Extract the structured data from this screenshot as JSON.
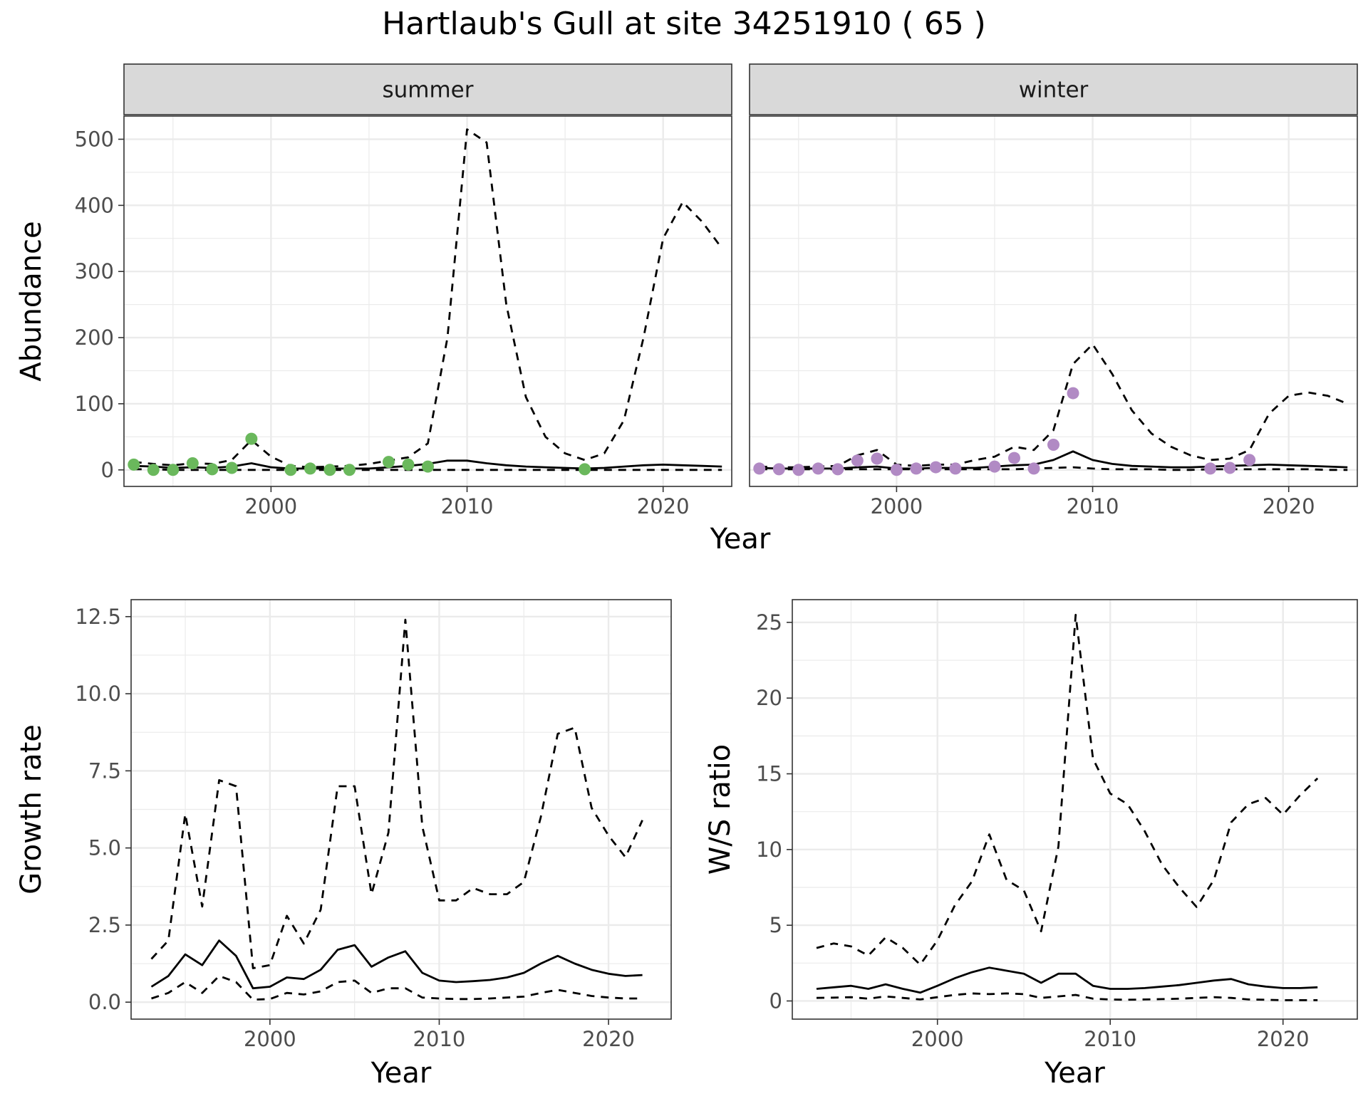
{
  "title": "Hartlaub's Gull at site 34251910 ( 65 )",
  "colors": {
    "summer_points": "#6AB85C",
    "winter_points": "#B18AC4",
    "strip": "#D9D9D9",
    "grid": "#EBEBEB",
    "line": "#000000"
  },
  "chart_data": [
    {
      "type": "line",
      "panel": "abundance-summer",
      "facet_label": "summer",
      "xlabel": "Year",
      "ylabel": "Abundance",
      "xlim": [
        1992.5,
        2023.5
      ],
      "ylim": [
        -25,
        535
      ],
      "xticks": [
        2000,
        2010,
        2020
      ],
      "yticks": [
        0,
        100,
        200,
        300,
        400,
        500
      ],
      "grid": true,
      "series": [
        {
          "role": "median",
          "style": "solid",
          "x": [
            1993,
            1994,
            1995,
            1996,
            1997,
            1998,
            1999,
            2000,
            2001,
            2002,
            2003,
            2004,
            2005,
            2006,
            2007,
            2008,
            2009,
            2010,
            2011,
            2012,
            2013,
            2014,
            2015,
            2016,
            2017,
            2018,
            2019,
            2020,
            2021,
            2022,
            2023
          ],
          "y": [
            6,
            5,
            3,
            4,
            3,
            5,
            10,
            4,
            2,
            2,
            2,
            2,
            2,
            4,
            6,
            9,
            14,
            14,
            10,
            7,
            5,
            4,
            3,
            2,
            3,
            5,
            7,
            8,
            7,
            6,
            5
          ]
        },
        {
          "role": "upper",
          "style": "dashed",
          "x": [
            1993,
            1994,
            1995,
            1996,
            1997,
            1998,
            1999,
            2000,
            2001,
            2002,
            2003,
            2004,
            2005,
            2006,
            2007,
            2008,
            2009,
            2010,
            2011,
            2012,
            2013,
            2014,
            2015,
            2016,
            2017,
            2018,
            2019,
            2020,
            2021,
            2022,
            2023
          ],
          "y": [
            12,
            9,
            7,
            10,
            9,
            15,
            45,
            20,
            6,
            4,
            5,
            6,
            9,
            14,
            19,
            40,
            200,
            515,
            495,
            250,
            110,
            50,
            25,
            15,
            25,
            75,
            200,
            350,
            405,
            375,
            335
          ]
        },
        {
          "role": "lower",
          "style": "dashed",
          "x": [
            1993,
            1994,
            1995,
            1996,
            1997,
            1998,
            1999,
            2000,
            2001,
            2002,
            2003,
            2004,
            2005,
            2006,
            2007,
            2008,
            2009,
            2010,
            2011,
            2012,
            2013,
            2014,
            2015,
            2016,
            2017,
            2018,
            2019,
            2020,
            2021,
            2022,
            2023
          ],
          "y": [
            1,
            1,
            0,
            0,
            0,
            0,
            0,
            0,
            0,
            0,
            0,
            0,
            0,
            0,
            0,
            0,
            0,
            0,
            0,
            0,
            0,
            0,
            0,
            0,
            0,
            0,
            0,
            0,
            0,
            0,
            0
          ]
        },
        {
          "role": "observed",
          "style": "points",
          "color": "#6AB85C",
          "x": [
            1993,
            1994,
            1995,
            1996,
            1997,
            1998,
            1999,
            2001,
            2002,
            2003,
            2004,
            2006,
            2007,
            2008,
            2016
          ],
          "y": [
            8,
            0,
            0,
            10,
            1,
            3,
            47,
            0,
            2,
            0,
            0,
            12,
            8,
            5,
            1
          ]
        }
      ]
    },
    {
      "type": "line",
      "panel": "abundance-winter",
      "facet_label": "winter",
      "xlabel": "Year",
      "ylabel": "",
      "xlim": [
        1992.5,
        2023.5
      ],
      "ylim": [
        -25,
        535
      ],
      "xticks": [
        2000,
        2010,
        2020
      ],
      "yticks": [
        0,
        100,
        200,
        300,
        400,
        500
      ],
      "grid": true,
      "series": [
        {
          "role": "median",
          "style": "solid",
          "x": [
            1993,
            1994,
            1995,
            1996,
            1997,
            1998,
            1999,
            2000,
            2001,
            2002,
            2003,
            2004,
            2005,
            2006,
            2007,
            2008,
            2009,
            2010,
            2011,
            2012,
            2013,
            2014,
            2015,
            2016,
            2017,
            2018,
            2019,
            2020,
            2021,
            2022,
            2023
          ],
          "y": [
            3,
            2,
            2,
            2,
            2,
            4,
            5,
            2,
            2,
            3,
            3,
            3,
            5,
            7,
            8,
            15,
            28,
            15,
            9,
            6,
            5,
            4,
            4,
            5,
            6,
            7,
            8,
            7,
            6,
            5,
            4
          ]
        },
        {
          "role": "upper",
          "style": "dashed",
          "x": [
            1993,
            1994,
            1995,
            1996,
            1997,
            1998,
            1999,
            2000,
            2001,
            2002,
            2003,
            2004,
            2005,
            2006,
            2007,
            2008,
            2009,
            2010,
            2011,
            2012,
            2013,
            2014,
            2015,
            2016,
            2017,
            2018,
            2019,
            2020,
            2021,
            2022,
            2023
          ],
          "y": [
            5,
            4,
            4,
            5,
            6,
            22,
            30,
            8,
            6,
            8,
            8,
            15,
            20,
            35,
            30,
            60,
            160,
            190,
            145,
            90,
            55,
            35,
            22,
            15,
            17,
            30,
            85,
            112,
            117,
            112,
            100
          ]
        },
        {
          "role": "lower",
          "style": "dashed",
          "x": [
            1993,
            1994,
            1995,
            1996,
            1997,
            1998,
            1999,
            2000,
            2001,
            2002,
            2003,
            2004,
            2005,
            2006,
            2007,
            2008,
            2009,
            2010,
            2011,
            2012,
            2013,
            2014,
            2015,
            2016,
            2017,
            2018,
            2019,
            2020,
            2021,
            2022,
            2023
          ],
          "y": [
            1,
            1,
            1,
            1,
            1,
            1,
            1,
            1,
            1,
            1,
            1,
            1,
            1,
            1,
            2,
            3,
            4,
            2,
            1,
            1,
            1,
            0,
            0,
            1,
            1,
            1,
            1,
            1,
            1,
            0,
            0
          ]
        },
        {
          "role": "observed",
          "style": "points",
          "color": "#B18AC4",
          "x": [
            1993,
            1994,
            1995,
            1996,
            1997,
            1998,
            1999,
            2000,
            2001,
            2002,
            2003,
            2005,
            2006,
            2007,
            2008,
            2009,
            2016,
            2017,
            2018
          ],
          "y": [
            2,
            1,
            0,
            2,
            1,
            14,
            17,
            0,
            2,
            4,
            2,
            5,
            18,
            2,
            38,
            116,
            2,
            3,
            15
          ]
        }
      ]
    },
    {
      "type": "line",
      "panel": "growth-rate",
      "xlabel": "Year",
      "ylabel": "Growth rate",
      "xlim": [
        1991.8,
        2023.7
      ],
      "ylim": [
        -0.55,
        13.05
      ],
      "xticks": [
        2000,
        2010,
        2020
      ],
      "yticks": [
        0.0,
        2.5,
        5.0,
        7.5,
        10.0,
        12.5
      ],
      "ytick_labels": [
        "0.0",
        "2.5",
        "5.0",
        "7.5",
        "10.0",
        "12.5"
      ],
      "grid": true,
      "series": [
        {
          "role": "median",
          "style": "solid",
          "x": [
            1993,
            1994,
            1995,
            1996,
            1997,
            1998,
            1999,
            2000,
            2001,
            2002,
            2003,
            2004,
            2005,
            2006,
            2007,
            2008,
            2009,
            2010,
            2011,
            2012,
            2013,
            2014,
            2015,
            2016,
            2017,
            2018,
            2019,
            2020,
            2021,
            2022
          ],
          "y": [
            0.5,
            0.85,
            1.55,
            1.2,
            2.0,
            1.5,
            0.45,
            0.5,
            0.8,
            0.75,
            1.05,
            1.7,
            1.85,
            1.15,
            1.45,
            1.65,
            0.95,
            0.7,
            0.65,
            0.68,
            0.72,
            0.8,
            0.95,
            1.25,
            1.5,
            1.25,
            1.05,
            0.92,
            0.85,
            0.88
          ]
        },
        {
          "role": "upper",
          "style": "dashed",
          "x": [
            1993,
            1994,
            1995,
            1996,
            1997,
            1998,
            1999,
            2000,
            2001,
            2002,
            2003,
            2004,
            2005,
            2006,
            2007,
            2008,
            2009,
            2010,
            2011,
            2012,
            2013,
            2014,
            2015,
            2016,
            2017,
            2018,
            2019,
            2020,
            2021,
            2022
          ],
          "y": [
            1.4,
            2.0,
            6.1,
            3.1,
            7.2,
            7.0,
            1.1,
            1.2,
            2.8,
            1.9,
            3.0,
            7.0,
            7.0,
            3.5,
            5.5,
            12.4,
            5.7,
            3.3,
            3.3,
            3.7,
            3.5,
            3.5,
            3.9,
            6.0,
            8.7,
            8.9,
            6.3,
            5.4,
            4.7,
            5.9
          ]
        },
        {
          "role": "lower",
          "style": "dashed",
          "x": [
            1993,
            1994,
            1995,
            1996,
            1997,
            1998,
            1999,
            2000,
            2001,
            2002,
            2003,
            2004,
            2005,
            2006,
            2007,
            2008,
            2009,
            2010,
            2011,
            2012,
            2013,
            2014,
            2015,
            2016,
            2017,
            2018,
            2019,
            2020,
            2021,
            2022
          ],
          "y": [
            0.12,
            0.3,
            0.65,
            0.3,
            0.85,
            0.65,
            0.08,
            0.1,
            0.3,
            0.25,
            0.35,
            0.65,
            0.7,
            0.3,
            0.45,
            0.45,
            0.15,
            0.12,
            0.1,
            0.1,
            0.12,
            0.15,
            0.18,
            0.3,
            0.4,
            0.3,
            0.2,
            0.15,
            0.12,
            0.12
          ]
        }
      ]
    },
    {
      "type": "line",
      "panel": "ws-ratio",
      "xlabel": "Year",
      "ylabel": "W/S ratio",
      "xlim": [
        1991.6,
        2024.3
      ],
      "ylim": [
        -1.2,
        26.5
      ],
      "xticks": [
        2000,
        2010,
        2020
      ],
      "yticks": [
        0,
        5,
        10,
        15,
        20,
        25
      ],
      "grid": true,
      "series": [
        {
          "role": "median",
          "style": "solid",
          "x": [
            1993,
            1994,
            1995,
            1996,
            1997,
            1998,
            1999,
            2000,
            2001,
            2002,
            2003,
            2004,
            2005,
            2006,
            2007,
            2008,
            2009,
            2010,
            2011,
            2012,
            2013,
            2014,
            2015,
            2016,
            2017,
            2018,
            2019,
            2020,
            2021,
            2022
          ],
          "y": [
            0.8,
            0.9,
            1.0,
            0.8,
            1.1,
            0.8,
            0.55,
            1.0,
            1.5,
            1.9,
            2.2,
            2.0,
            1.8,
            1.2,
            1.8,
            1.8,
            1.0,
            0.8,
            0.8,
            0.85,
            0.95,
            1.05,
            1.2,
            1.35,
            1.45,
            1.1,
            0.95,
            0.85,
            0.85,
            0.9
          ]
        },
        {
          "role": "upper",
          "style": "dashed",
          "x": [
            1993,
            1994,
            1995,
            1996,
            1997,
            1998,
            1999,
            2000,
            2001,
            2002,
            2003,
            2004,
            2005,
            2006,
            2007,
            2008,
            2009,
            2010,
            2011,
            2012,
            2013,
            2014,
            2015,
            2016,
            2017,
            2018,
            2019,
            2020,
            2021,
            2022
          ],
          "y": [
            3.5,
            3.8,
            3.6,
            3.0,
            4.2,
            3.5,
            2.4,
            4.0,
            6.3,
            7.9,
            11.0,
            8.0,
            7.3,
            4.6,
            10.2,
            25.5,
            16.0,
            13.7,
            13.0,
            11.2,
            9.0,
            7.5,
            6.2,
            8.0,
            11.8,
            13.0,
            13.4,
            12.3,
            13.6,
            14.7
          ]
        },
        {
          "role": "lower",
          "style": "dashed",
          "x": [
            1993,
            1994,
            1995,
            1996,
            1997,
            1998,
            1999,
            2000,
            2001,
            2002,
            2003,
            2004,
            2005,
            2006,
            2007,
            2008,
            2009,
            2010,
            2011,
            2012,
            2013,
            2014,
            2015,
            2016,
            2017,
            2018,
            2019,
            2020,
            2021,
            2022
          ],
          "y": [
            0.2,
            0.22,
            0.25,
            0.15,
            0.3,
            0.2,
            0.1,
            0.25,
            0.4,
            0.5,
            0.45,
            0.5,
            0.45,
            0.2,
            0.3,
            0.4,
            0.15,
            0.1,
            0.08,
            0.1,
            0.12,
            0.15,
            0.2,
            0.25,
            0.2,
            0.1,
            0.08,
            0.05,
            0.05,
            0.05
          ]
        }
      ]
    }
  ]
}
